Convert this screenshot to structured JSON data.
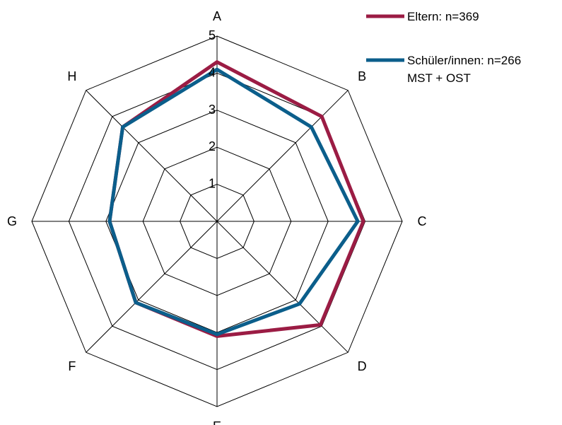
{
  "chart_data": {
    "type": "radar",
    "categories": [
      "A",
      "B",
      "C",
      "D",
      "E",
      "F",
      "G",
      "H"
    ],
    "rlim": [
      0,
      5
    ],
    "ticks": [
      "1",
      "2",
      "3",
      "4",
      "5"
    ],
    "grid": true,
    "legend_position": "top-right",
    "series": [
      {
        "name": "Eltern: n=369",
        "color": "#9B1C44",
        "values": [
          4.3,
          4.0,
          3.95,
          3.95,
          3.1,
          3.1,
          2.9,
          3.6
        ]
      },
      {
        "name": "Schüler/innen: n=266",
        "color": "#0B5E8B",
        "values": [
          4.1,
          3.6,
          3.8,
          3.15,
          3.05,
          3.1,
          2.9,
          3.6
        ]
      }
    ],
    "legend_note": "MST + OST"
  }
}
